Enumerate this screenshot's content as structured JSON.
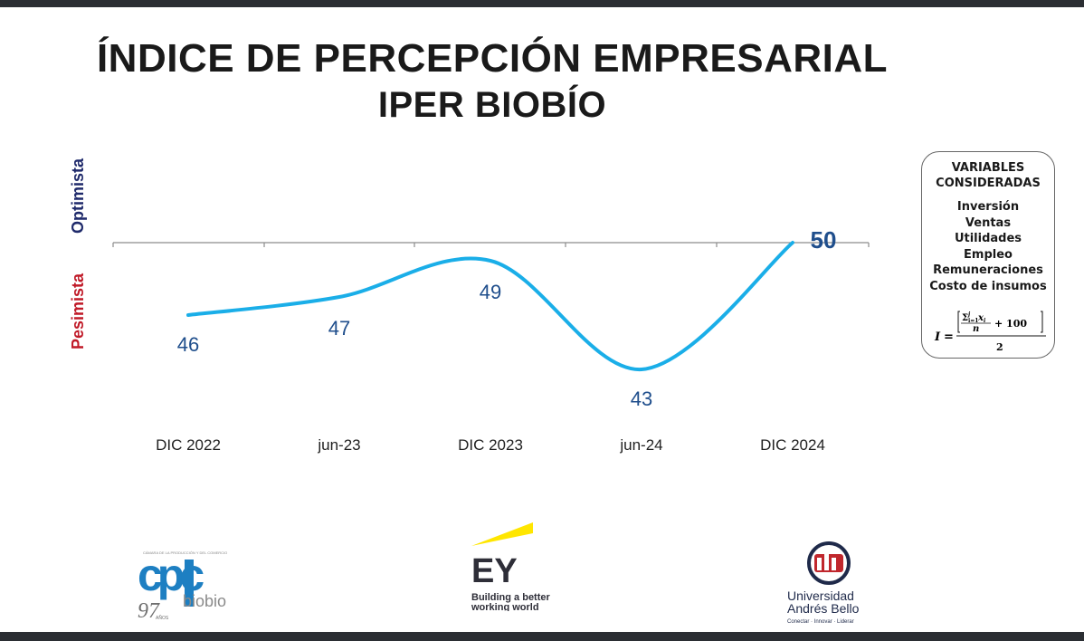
{
  "title_line1": "ÍNDICE DE PERCEPCIÓN EMPRESARIAL",
  "title_line2": "IPER BIOBÍO",
  "axis_labels": {
    "top": "Optimista",
    "bottom": "Pesimista"
  },
  "chart_data": {
    "type": "line",
    "x": [
      "DIC 2022",
      "jun-23",
      "DIC 2023",
      "jun-24",
      "DIC 2024"
    ],
    "series": [
      {
        "values": [
          46,
          47,
          49,
          43,
          50
        ]
      }
    ],
    "reference_line": 50,
    "line_color": "#1aaee8",
    "label_color": "#1f4e8c"
  },
  "variables_box": {
    "title": "VARIABLES CONSIDERADAS",
    "items": [
      "Inversión",
      "Ventas",
      "Utilidades",
      "Empleo",
      "Remuneraciones",
      "Costo de insumos"
    ],
    "formula": "I = [ (Σ_{i=1}^{j} x_i) / n + 100 ] / 2"
  },
  "logos": {
    "cpc": {
      "main": "cpc",
      "sub": "biobio",
      "years": "97",
      "years_label": "AÑOS"
    },
    "ey": {
      "main": "EY",
      "tagline_1": "Building a better",
      "tagline_2": "working world"
    },
    "uab": {
      "line1": "Universidad",
      "line2": "Andrés Bello",
      "tagline": "Conectar · Innovar · Liderar"
    }
  }
}
